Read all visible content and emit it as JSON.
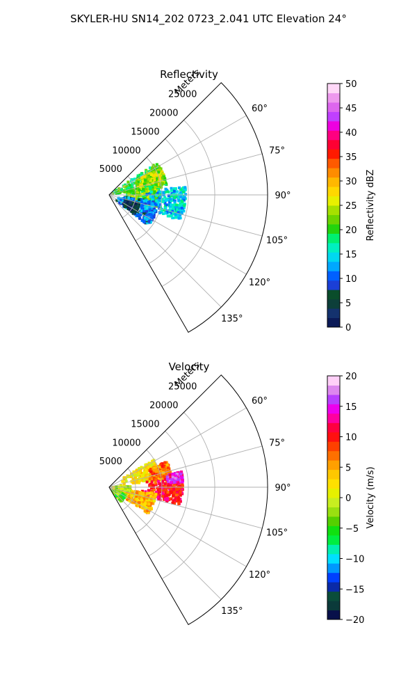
{
  "figure": {
    "title": "SKYLER-HU  SN14_202  0723_2.041 UTC Elevation 24°"
  },
  "colors": {
    "grid": "#b0b0b0",
    "frame": "#000000",
    "reflectivity_stops": [
      "#0b1a57",
      "#14326e",
      "#0d3f3a",
      "#0a4d2b",
      "#1b3fd6",
      "#0060ff",
      "#00a8ff",
      "#00d8f0",
      "#00f0c0",
      "#00f070",
      "#23d40d",
      "#6cd400",
      "#a6e000",
      "#e8f000",
      "#ffd800",
      "#ffb800",
      "#ff8c00",
      "#ff5a00",
      "#ff1a00",
      "#ff0033",
      "#ff0080",
      "#ee00e0",
      "#c040ff",
      "#dd66ee",
      "#ee99ee",
      "#ffd8f8"
    ],
    "velocity_stops": [
      "#08104a",
      "#0b3a3a",
      "#0a4d3a",
      "#0a2aa8",
      "#0040ff",
      "#0098ff",
      "#00e0ff",
      "#00f0b0",
      "#00ee40",
      "#10e010",
      "#55d000",
      "#99e010",
      "#c8ee20",
      "#e6f000",
      "#ffe000",
      "#ffc800",
      "#ffa000",
      "#ff7000",
      "#ff4000",
      "#ff1010",
      "#ff0040",
      "#ff00a0",
      "#ee00ee",
      "#b840ff",
      "#dd88ee",
      "#ffd0f8"
    ]
  },
  "chart_data": [
    {
      "type": "heatmap",
      "projection": "polar-sector",
      "title": "Reflectivity",
      "radial_label": "Meters",
      "radial_ticks": [
        "5000",
        "10000",
        "15000",
        "20000",
        "25000"
      ],
      "radial_max": 30000,
      "angle_range": [
        45,
        150
      ],
      "angle_ticks": [
        "60°",
        "75°",
        "90°",
        "105°",
        "120°",
        "135°"
      ],
      "colorbar": {
        "label": "Reflectivity dBZ",
        "min": 0,
        "max": 50,
        "ticks": [
          "0",
          "5",
          "10",
          "15",
          "20",
          "25",
          "30",
          "35",
          "40",
          "45",
          "50"
        ]
      },
      "echo_regions": [
        {
          "az": [
            56,
            82
          ],
          "range": [
            0,
            11000
          ],
          "value": 20
        },
        {
          "az": [
            62,
            78
          ],
          "range": [
            5000,
            11000
          ],
          "value": 24
        },
        {
          "az": [
            78,
            104
          ],
          "range": [
            3000,
            9500
          ],
          "value": 22
        },
        {
          "az": [
            84,
            110
          ],
          "range": [
            7000,
            14500
          ],
          "value": 14
        },
        {
          "az": [
            98,
            128
          ],
          "range": [
            1500,
            9500
          ],
          "value": 11
        },
        {
          "az": [
            106,
            126
          ],
          "range": [
            3000,
            6000
          ],
          "value": 4
        }
      ]
    },
    {
      "type": "heatmap",
      "projection": "polar-sector",
      "title": "Velocity",
      "radial_label": "Meters",
      "radial_ticks": [
        "5000",
        "10000",
        "15000",
        "20000",
        "25000"
      ],
      "radial_max": 30000,
      "angle_range": [
        45,
        150
      ],
      "angle_ticks": [
        "60°",
        "75°",
        "90°",
        "105°",
        "120°",
        "135°"
      ],
      "colorbar": {
        "label": "Velocity (m/s)",
        "min": -20,
        "max": 20,
        "ticks": [
          "−20",
          "−15",
          "−10",
          "−5",
          "0",
          "5",
          "10",
          "15",
          "20"
        ]
      },
      "echo_regions": [
        {
          "az": [
            58,
            82
          ],
          "range": [
            2000,
            10000
          ],
          "value": 2
        },
        {
          "az": [
            66,
            82
          ],
          "range": [
            7500,
            12000
          ],
          "value": 7
        },
        {
          "az": [
            82,
            104
          ],
          "range": [
            6000,
            14000
          ],
          "value": 10
        },
        {
          "az": [
            78,
            86
          ],
          "range": [
            11000,
            14000
          ],
          "value": 15
        },
        {
          "az": [
            98,
            124
          ],
          "range": [
            1500,
            9000
          ],
          "value": 4
        },
        {
          "az": [
            115,
            140
          ],
          "range": [
            500,
            3500
          ],
          "value": -4
        },
        {
          "az": [
            88,
            100
          ],
          "range": [
            0,
            4000
          ],
          "value": -1
        }
      ]
    }
  ]
}
